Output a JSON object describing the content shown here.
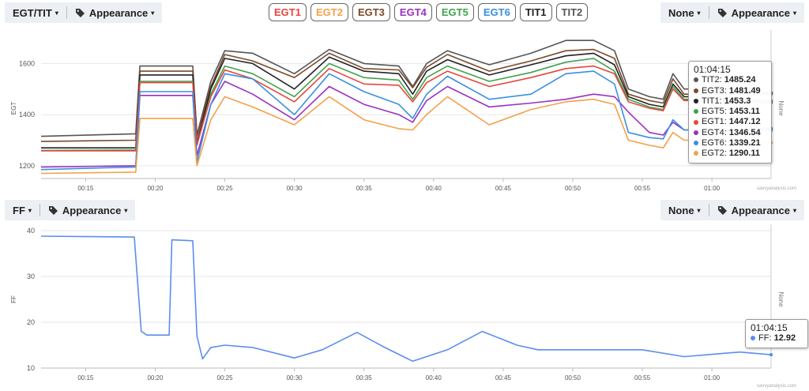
{
  "top_bar": {
    "left_select": "EGT/TIT",
    "appearance_label": "Appearance",
    "right_select": "None",
    "right_appearance_label": "Appearance"
  },
  "series_buttons": [
    {
      "label": "EGT1",
      "color": "#e8453c"
    },
    {
      "label": "EGT2",
      "color": "#f5a04a"
    },
    {
      "label": "EGT3",
      "color": "#7a4a2a"
    },
    {
      "label": "EGT4",
      "color": "#9b30c0"
    },
    {
      "label": "EGT5",
      "color": "#3fa34d"
    },
    {
      "label": "EGT6",
      "color": "#3a8fe0"
    },
    {
      "label": "TIT1",
      "color": "#222222"
    },
    {
      "label": "TIT2",
      "color": "#555555"
    }
  ],
  "ff_bar": {
    "left_select": "FF",
    "appearance_label": "Appearance",
    "right_select": "None",
    "right_appearance_label": "Appearance"
  },
  "watermark": "savvyanalysis.com",
  "tooltip_egt": {
    "time": "01:04:15",
    "rows": [
      {
        "name": "TIT2",
        "value": "1485.24",
        "color": "#555555"
      },
      {
        "name": "EGT3",
        "value": "1481.49",
        "color": "#7a4a2a"
      },
      {
        "name": "TIT1",
        "value": "1453.3",
        "color": "#222222"
      },
      {
        "name": "EGT5",
        "value": "1453.11",
        "color": "#3fa34d"
      },
      {
        "name": "EGT1",
        "value": "1447.12",
        "color": "#e8453c"
      },
      {
        "name": "EGT4",
        "value": "1346.54",
        "color": "#9b30c0"
      },
      {
        "name": "EGT6",
        "value": "1339.21",
        "color": "#3a8fe0"
      },
      {
        "name": "EGT2",
        "value": "1290.11",
        "color": "#f5a04a"
      }
    ]
  },
  "tooltip_ff": {
    "time": "01:04:15",
    "rows": [
      {
        "name": "FF",
        "value": "12.92",
        "color": "#5b8def"
      }
    ]
  },
  "chart_data": [
    {
      "type": "line",
      "ylabel": "EGT",
      "right_label": "None",
      "ylim": [
        1150,
        1700
      ],
      "yticks": [
        1200,
        1400,
        1600
      ],
      "x_ticks": [
        "00:15",
        "00:20",
        "00:25",
        "00:30",
        "00:35",
        "00:40",
        "00:45",
        "00:50",
        "00:55",
        "01:00"
      ],
      "x_minutes_range": [
        11.8,
        64.25
      ],
      "x_minutes": [
        11.8,
        18.6,
        18.9,
        22.7,
        23.0,
        24.0,
        25.0,
        27.0,
        30.0,
        32.5,
        35.0,
        37.5,
        38.5,
        39.5,
        41.0,
        44.0,
        47.0,
        49.5,
        51.5,
        53.0,
        54.0,
        55.5,
        56.5,
        57.2,
        58.0,
        60.0,
        64.25
      ],
      "series": [
        {
          "name": "TIT2",
          "color": "#555555",
          "values": [
            1315,
            1325,
            1590,
            1590,
            1320,
            1530,
            1650,
            1640,
            1560,
            1655,
            1600,
            1590,
            1510,
            1600,
            1650,
            1595,
            1640,
            1690,
            1690,
            1650,
            1500,
            1470,
            1460,
            1560,
            1500,
            1500,
            1485
          ]
        },
        {
          "name": "EGT3",
          "color": "#7a4a2a",
          "values": [
            1295,
            1300,
            1570,
            1570,
            1315,
            1510,
            1635,
            1610,
            1545,
            1640,
            1580,
            1575,
            1505,
            1585,
            1635,
            1570,
            1610,
            1650,
            1655,
            1620,
            1480,
            1455,
            1445,
            1540,
            1480,
            1480,
            1481
          ]
        },
        {
          "name": "TIT1",
          "color": "#222222",
          "values": [
            1270,
            1270,
            1555,
            1555,
            1290,
            1500,
            1620,
            1600,
            1500,
            1625,
            1570,
            1560,
            1480,
            1570,
            1615,
            1555,
            1595,
            1630,
            1640,
            1595,
            1470,
            1440,
            1430,
            1520,
            1470,
            1470,
            1453
          ]
        },
        {
          "name": "EGT5",
          "color": "#3fa34d",
          "values": [
            1260,
            1262,
            1530,
            1530,
            1280,
            1480,
            1590,
            1560,
            1470,
            1600,
            1545,
            1535,
            1460,
            1545,
            1590,
            1530,
            1565,
            1605,
            1620,
            1570,
            1460,
            1430,
            1420,
            1510,
            1460,
            1460,
            1453
          ]
        },
        {
          "name": "EGT1",
          "color": "#e8453c",
          "values": [
            1258,
            1258,
            1525,
            1525,
            1285,
            1470,
            1575,
            1540,
            1450,
            1580,
            1520,
            1515,
            1450,
            1525,
            1570,
            1510,
            1545,
            1580,
            1590,
            1560,
            1450,
            1425,
            1415,
            1500,
            1455,
            1455,
            1447
          ]
        },
        {
          "name": "EGT4",
          "color": "#9b30c0",
          "values": [
            1195,
            1200,
            1475,
            1475,
            1240,
            1440,
            1530,
            1480,
            1380,
            1510,
            1440,
            1400,
            1370,
            1455,
            1510,
            1430,
            1445,
            1460,
            1480,
            1470,
            1410,
            1330,
            1320,
            1370,
            1340,
            1340,
            1346
          ]
        },
        {
          "name": "EGT6",
          "color": "#3a8fe0",
          "values": [
            1185,
            1195,
            1490,
            1490,
            1215,
            1440,
            1560,
            1540,
            1400,
            1560,
            1490,
            1440,
            1385,
            1480,
            1550,
            1460,
            1480,
            1560,
            1570,
            1520,
            1330,
            1310,
            1305,
            1380,
            1340,
            1340,
            1339
          ]
        },
        {
          "name": "EGT2",
          "color": "#f5a04a",
          "values": [
            1170,
            1175,
            1385,
            1385,
            1200,
            1380,
            1470,
            1430,
            1360,
            1470,
            1380,
            1345,
            1340,
            1400,
            1470,
            1360,
            1420,
            1450,
            1460,
            1440,
            1300,
            1280,
            1270,
            1330,
            1300,
            1300,
            1290
          ]
        }
      ]
    },
    {
      "type": "line",
      "ylabel": "FF",
      "right_label": "None",
      "ylim": [
        10,
        40
      ],
      "yticks": [
        10,
        20,
        30,
        40
      ],
      "x_ticks": [
        "00:15",
        "00:20",
        "00:25",
        "00:30",
        "00:35",
        "00:40",
        "00:45",
        "00:50",
        "00:55",
        "01:00"
      ],
      "x_minutes_range": [
        11.8,
        64.25
      ],
      "x_minutes": [
        11.8,
        18.5,
        19.0,
        19.4,
        21.0,
        21.2,
        22.7,
        23.0,
        23.4,
        24.0,
        25.0,
        27.0,
        30.0,
        32.0,
        34.5,
        36.5,
        38.5,
        39.5,
        41.0,
        43.5,
        46.0,
        47.5,
        50.0,
        52.5,
        54.0,
        55.0,
        58.0,
        60.0,
        62.0,
        64.25
      ],
      "series": [
        {
          "name": "FF",
          "color": "#5b8def",
          "values": [
            38.8,
            38.6,
            18.0,
            17.2,
            17.2,
            38.0,
            37.8,
            17.0,
            12.0,
            14.5,
            15.0,
            14.5,
            12.2,
            14.0,
            17.8,
            14.5,
            11.5,
            12.5,
            14.0,
            18.0,
            15.0,
            14.0,
            14.0,
            14.0,
            14.0,
            14.0,
            12.5,
            13.0,
            13.5,
            12.92
          ]
        }
      ]
    }
  ]
}
